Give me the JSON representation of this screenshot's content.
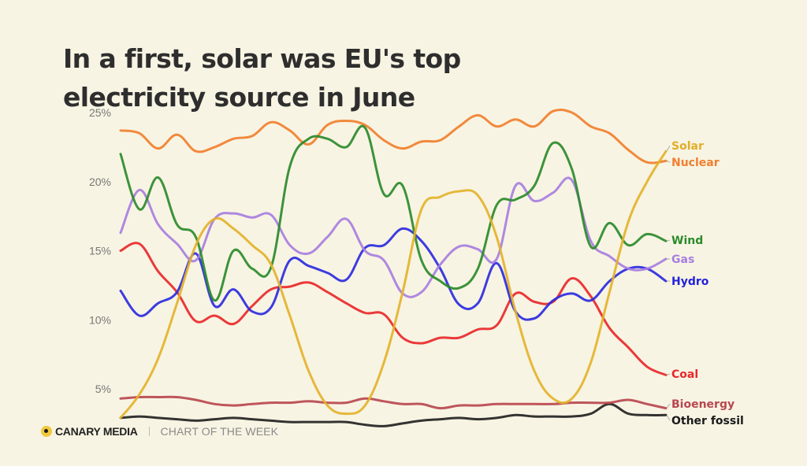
{
  "title_line1": "In a first, solar was EU's top",
  "title_line2": "electricity source in June",
  "footer": {
    "brand": "CANARY MEDIA",
    "tagline": "CHART OF THE WEEK"
  },
  "chart_data": {
    "type": "line",
    "title": "In a first, solar was EU's top electricity source in June",
    "xlabel": "",
    "ylabel": "",
    "x": [
      1,
      2,
      3,
      4,
      5,
      6,
      7,
      8,
      9,
      10,
      11,
      12,
      13,
      14,
      15,
      16,
      17,
      18,
      19,
      20,
      21,
      22,
      23,
      24,
      25,
      26,
      27,
      28,
      29,
      30
    ],
    "x_description": "Days of June (unlabeled on chart)",
    "ylim": [
      3,
      25
    ],
    "yticks": [
      5,
      10,
      15,
      20,
      25
    ],
    "ytick_labels": [
      "5%",
      "10%",
      "15%",
      "20%",
      "25%"
    ],
    "grid": false,
    "legend": "direct labels at right end of lines",
    "series": [
      {
        "name": "Solar",
        "color": "#e3b22b",
        "values": [
          2.9,
          4.6,
          7.2,
          11.2,
          15.4,
          17.3,
          16.6,
          15.4,
          14.0,
          10.3,
          6.3,
          3.8,
          3.2,
          3.8,
          6.9,
          12.0,
          18.0,
          18.9,
          19.3,
          19.0,
          16.0,
          10.6,
          6.3,
          4.3,
          4.3,
          6.9,
          12.0,
          17.1,
          20.0,
          22.2
        ]
      },
      {
        "name": "Nuclear",
        "color": "#f07f2f",
        "values": [
          23.7,
          23.5,
          22.4,
          23.4,
          22.2,
          22.5,
          23.1,
          23.3,
          24.3,
          23.7,
          22.7,
          24.1,
          24.4,
          24.1,
          23.0,
          22.4,
          22.9,
          23.0,
          24.0,
          24.8,
          24.0,
          24.5,
          24.0,
          25.1,
          25.0,
          24.0,
          23.5,
          22.3,
          21.4,
          21.5
        ]
      },
      {
        "name": "Wind",
        "color": "#2b8a2b",
        "values": [
          22.0,
          18.0,
          20.3,
          16.9,
          16.0,
          11.4,
          15.0,
          13.7,
          13.8,
          21.1,
          23.1,
          23.1,
          22.5,
          23.9,
          19.1,
          19.7,
          14.3,
          12.8,
          12.3,
          13.7,
          18.3,
          18.7,
          19.7,
          22.8,
          20.9,
          15.3,
          17.0,
          15.4,
          16.2,
          15.7
        ]
      },
      {
        "name": "Gas",
        "color": "#a77ee0",
        "values": [
          16.3,
          19.4,
          16.9,
          15.5,
          14.3,
          17.3,
          17.7,
          17.4,
          17.6,
          15.4,
          14.8,
          16.0,
          17.3,
          15.0,
          14.3,
          11.9,
          12.0,
          14.0,
          15.3,
          15.1,
          14.4,
          19.7,
          18.6,
          19.2,
          20.1,
          15.7,
          14.6,
          13.7,
          13.7,
          14.4
        ]
      },
      {
        "name": "Hydro",
        "color": "#2b2be0",
        "values": [
          12.1,
          10.3,
          11.2,
          12.0,
          14.8,
          11.0,
          12.2,
          10.6,
          10.9,
          14.3,
          13.9,
          13.4,
          12.9,
          15.2,
          15.4,
          16.6,
          15.7,
          13.7,
          11.1,
          11.2,
          14.1,
          10.6,
          10.1,
          11.4,
          11.9,
          11.4,
          12.8,
          13.7,
          13.7,
          12.8
        ]
      },
      {
        "name": "Coal",
        "color": "#e8282b",
        "values": [
          15.0,
          15.5,
          13.5,
          12.0,
          9.9,
          10.3,
          9.7,
          11.0,
          12.2,
          12.4,
          12.7,
          12.0,
          11.2,
          10.5,
          10.4,
          8.7,
          8.3,
          8.7,
          8.7,
          9.3,
          9.6,
          11.9,
          11.3,
          11.3,
          13.0,
          11.7,
          9.4,
          8.0,
          6.6,
          6.0
        ]
      },
      {
        "name": "Bioenergy",
        "color": "#b8474f",
        "values": [
          4.3,
          4.4,
          4.4,
          4.4,
          4.2,
          3.9,
          3.8,
          3.9,
          4.0,
          4.0,
          4.1,
          4.0,
          4.0,
          4.3,
          4.1,
          3.9,
          3.9,
          3.6,
          3.8,
          3.8,
          3.9,
          3.9,
          3.9,
          3.9,
          4.0,
          4.0,
          4.0,
          4.2,
          3.9,
          3.6
        ]
      },
      {
        "name": "Other fossil",
        "color": "#222222",
        "values": [
          2.9,
          3.0,
          2.9,
          2.8,
          2.7,
          2.8,
          2.9,
          2.8,
          2.7,
          2.6,
          2.6,
          2.6,
          2.6,
          2.4,
          2.3,
          2.5,
          2.7,
          2.8,
          2.9,
          2.8,
          2.9,
          3.1,
          3.0,
          3.0,
          3.0,
          3.2,
          3.9,
          3.2,
          3.1,
          3.1
        ]
      }
    ]
  }
}
